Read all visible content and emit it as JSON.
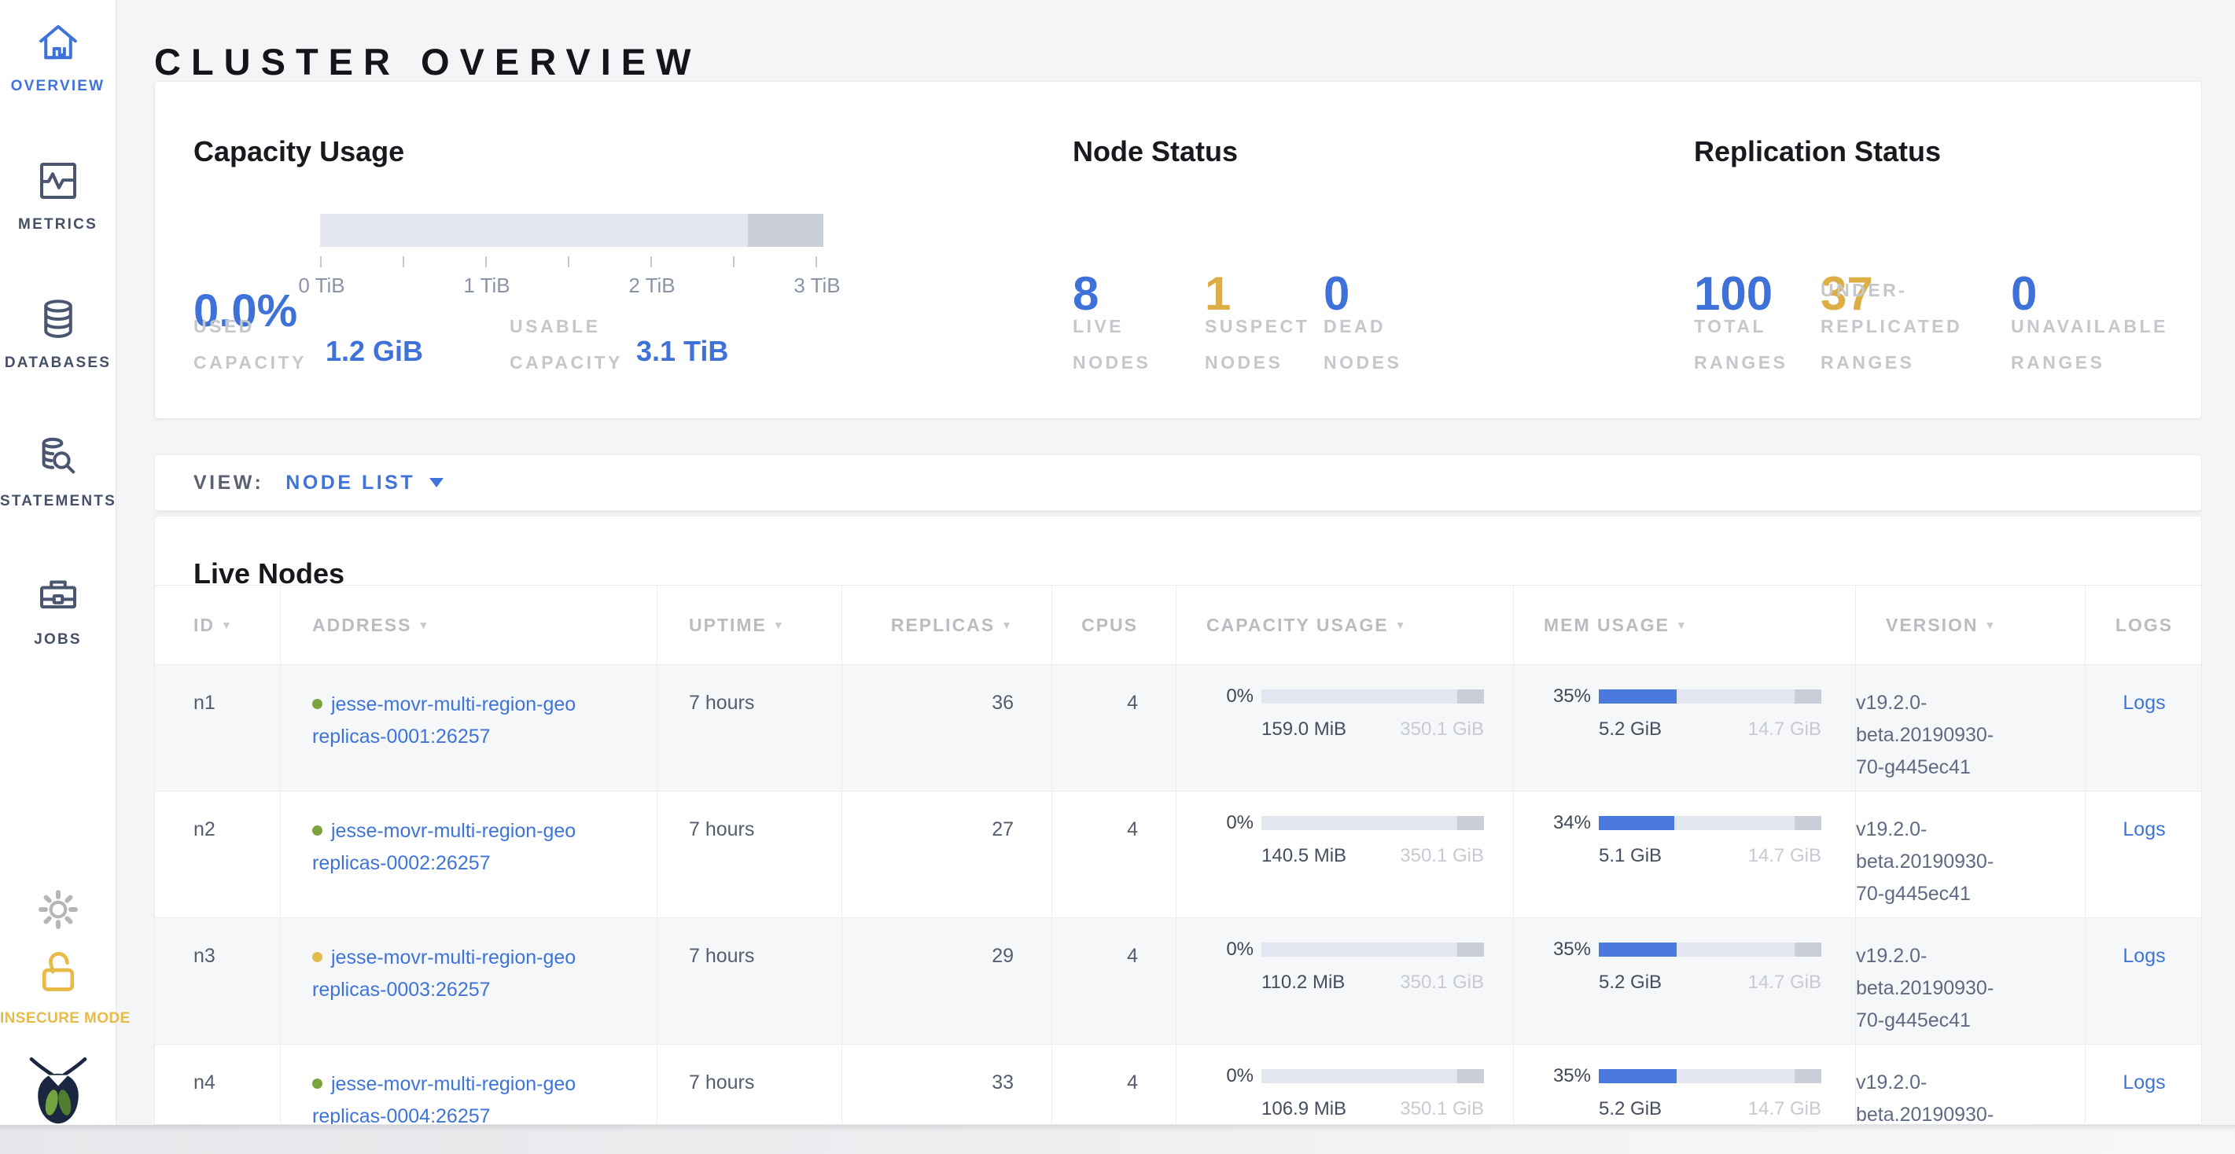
{
  "title": "CLUSTER OVERVIEW",
  "colors": {
    "accent_blue": "#3e72d9",
    "warning_yellow": "#ddae45",
    "link_blue": "#3e74d8",
    "bar_track": "#e3e6ee",
    "bar_reserved": "#c9ced9",
    "bar_fill_blue": "#4a7ade",
    "dot_green": "#7aa53c",
    "dot_yellow": "#e3bb4c",
    "insecure_yellow": "#e8bb49"
  },
  "sidebar": {
    "items": [
      {
        "label": "OVERVIEW",
        "active": true
      },
      {
        "label": "METRICS",
        "active": false
      },
      {
        "label": "DATABASES",
        "active": false
      },
      {
        "label": "STATEMENTS",
        "active": false
      },
      {
        "label": "JOBS",
        "active": false
      }
    ],
    "insecure_label": "INSECURE MODE"
  },
  "summary": {
    "capacity": {
      "title": "Capacity Usage",
      "percent": "0.0%",
      "tick_labels": [
        "0 TiB",
        "1 TiB",
        "2 TiB",
        "3 TiB"
      ],
      "used": {
        "line1": "USED",
        "line2": "CAPACITY",
        "value": "1.2 GiB"
      },
      "usable": {
        "line1": "USABLE",
        "line2": "CAPACITY",
        "value": "3.1 TiB"
      }
    },
    "node_status": {
      "title": "Node Status",
      "stats": [
        {
          "value": "8",
          "lines": [
            "LIVE",
            "NODES"
          ],
          "color": "#3e72d9"
        },
        {
          "value": "1",
          "lines": [
            "SUSPECT",
            "NODES"
          ],
          "color": "#ddae45"
        },
        {
          "value": "0",
          "lines": [
            "DEAD",
            "NODES"
          ],
          "color": "#3e72d9"
        }
      ]
    },
    "replication_status": {
      "title": "Replication Status",
      "stats": [
        {
          "value": "100",
          "lines": [
            "TOTAL",
            "RANGES"
          ],
          "color": "#3e72d9"
        },
        {
          "value": "37",
          "lines": [
            "UNDER-",
            "REPLICATED",
            "RANGES"
          ],
          "color": "#ddae45"
        },
        {
          "value": "0",
          "lines": [
            "UNAVAILABLE",
            "RANGES"
          ],
          "color": "#3e72d9"
        }
      ]
    }
  },
  "view_bar": {
    "label": "VIEW:",
    "selected": "NODE LIST"
  },
  "live_nodes": {
    "title": "Live Nodes",
    "columns": [
      {
        "label": "ID",
        "sort": true
      },
      {
        "label": "ADDRESS",
        "sort": true
      },
      {
        "label": "UPTIME",
        "sort": true
      },
      {
        "label": "REPLICAS",
        "sort": true
      },
      {
        "label": "CPUS",
        "sort": false
      },
      {
        "label": "CAPACITY USAGE",
        "sort": true
      },
      {
        "label": "MEM USAGE",
        "sort": true
      },
      {
        "label": "VERSION",
        "sort": true
      },
      {
        "label": "LOGS",
        "sort": false
      }
    ],
    "rows": [
      {
        "id": "n1",
        "status_color": "#7aa53c",
        "address_lines": [
          "jesse-movr-multi-region-geo",
          "replicas-0001:26257"
        ],
        "uptime": "7 hours",
        "replicas": "36",
        "cpus": "4",
        "capacity": {
          "percent": "0%",
          "fill": 0,
          "used": "159.0 MiB",
          "total": "350.1 GiB"
        },
        "memory": {
          "percent": "35%",
          "fill": 35,
          "used": "5.2 GiB",
          "total": "14.7 GiB"
        },
        "version_lines": [
          "v19.2.0-",
          "beta.20190930-",
          "70-g445ec41"
        ],
        "logs_label": "Logs"
      },
      {
        "id": "n2",
        "status_color": "#7aa53c",
        "address_lines": [
          "jesse-movr-multi-region-geo",
          "replicas-0002:26257"
        ],
        "uptime": "7 hours",
        "replicas": "27",
        "cpus": "4",
        "capacity": {
          "percent": "0%",
          "fill": 0,
          "used": "140.5 MiB",
          "total": "350.1 GiB"
        },
        "memory": {
          "percent": "34%",
          "fill": 34,
          "used": "5.1 GiB",
          "total": "14.7 GiB"
        },
        "version_lines": [
          "v19.2.0-",
          "beta.20190930-",
          "70-g445ec41"
        ],
        "logs_label": "Logs"
      },
      {
        "id": "n3",
        "status_color": "#e3bb4c",
        "address_lines": [
          "jesse-movr-multi-region-geo",
          "replicas-0003:26257"
        ],
        "uptime": "7 hours",
        "replicas": "29",
        "cpus": "4",
        "capacity": {
          "percent": "0%",
          "fill": 0,
          "used": "110.2 MiB",
          "total": "350.1 GiB"
        },
        "memory": {
          "percent": "35%",
          "fill": 35,
          "used": "5.2 GiB",
          "total": "14.7 GiB"
        },
        "version_lines": [
          "v19.2.0-",
          "beta.20190930-",
          "70-g445ec41"
        ],
        "logs_label": "Logs"
      },
      {
        "id": "n4",
        "status_color": "#7aa53c",
        "address_lines": [
          "jesse-movr-multi-region-geo",
          "replicas-0004:26257"
        ],
        "uptime": "7 hours",
        "replicas": "33",
        "cpus": "4",
        "capacity": {
          "percent": "0%",
          "fill": 0,
          "used": "106.9 MiB",
          "total": "350.1 GiB"
        },
        "memory": {
          "percent": "35%",
          "fill": 35,
          "used": "5.2 GiB",
          "total": "14.7 GiB"
        },
        "version_lines": [
          "v19.2.0-",
          "beta.20190930-"
        ],
        "logs_label": "Logs"
      }
    ]
  }
}
